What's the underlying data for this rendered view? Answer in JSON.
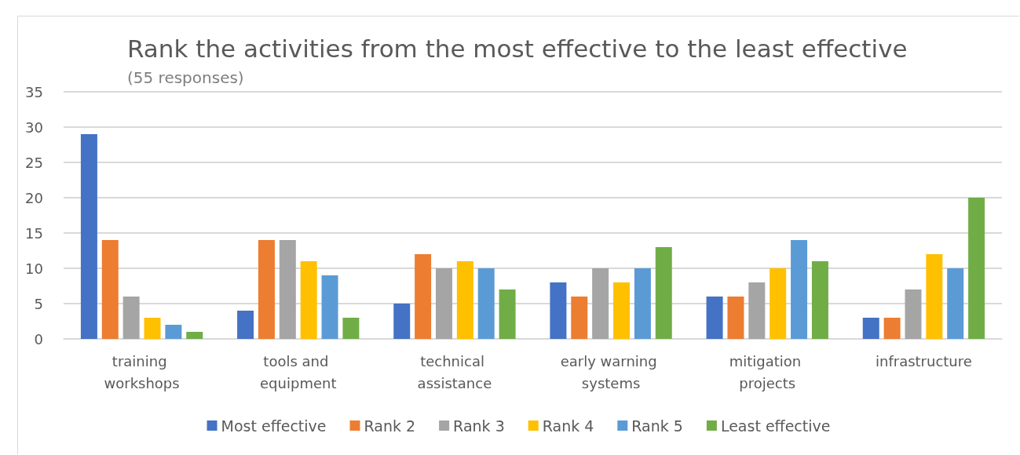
{
  "chart_data": {
    "type": "bar",
    "title": "Rank the activities from the most effective to the least effective",
    "subtitle": "(55 responses)",
    "categories": [
      "training workshops",
      "tools and equipment",
      "technical assistance",
      "early warning systems",
      "mitigation projects",
      "infrastructure"
    ],
    "series": [
      {
        "name": "Most effective",
        "color": "#4472c4",
        "values": [
          29,
          4,
          5,
          8,
          6,
          3
        ]
      },
      {
        "name": "Rank 2",
        "color": "#ed7d31",
        "values": [
          14,
          14,
          12,
          6,
          6,
          3
        ]
      },
      {
        "name": "Rank 3",
        "color": "#a5a5a5",
        "values": [
          6,
          14,
          10,
          10,
          8,
          7
        ]
      },
      {
        "name": "Rank 4",
        "color": "#ffc000",
        "values": [
          3,
          11,
          11,
          8,
          10,
          12
        ]
      },
      {
        "name": "Rank 5",
        "color": "#5b9bd5",
        "values": [
          2,
          9,
          10,
          10,
          14,
          10
        ]
      },
      {
        "name": "Least effective",
        "color": "#70ad47",
        "values": [
          1,
          3,
          7,
          13,
          11,
          20
        ]
      }
    ],
    "ylim": [
      0,
      35
    ],
    "yticks": [
      0,
      5,
      10,
      15,
      20,
      25,
      30,
      35
    ],
    "grid": "y",
    "legend": "bottom"
  }
}
